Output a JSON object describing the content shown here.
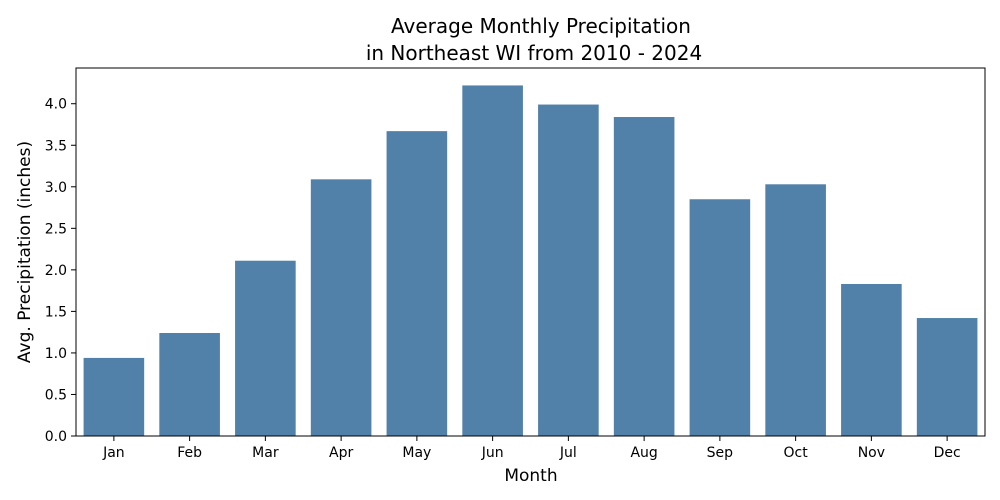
{
  "chart_data": {
    "type": "bar",
    "title_lines": [
      "Average Monthly Precipitation",
      "in Northeast WI from 2010 - 2024"
    ],
    "xlabel": "Month",
    "ylabel": "Avg. Precipitation (inches)",
    "categories": [
      "Jan",
      "Feb",
      "Mar",
      "Apr",
      "May",
      "Jun",
      "Jul",
      "Aug",
      "Sep",
      "Oct",
      "Nov",
      "Dec"
    ],
    "values": [
      0.94,
      1.24,
      2.11,
      3.09,
      3.67,
      4.22,
      3.99,
      3.84,
      2.85,
      3.03,
      1.83,
      1.42
    ],
    "ylim": [
      0,
      4.43
    ],
    "yticks": [
      0.0,
      0.5,
      1.0,
      1.5,
      2.0,
      2.5,
      3.0,
      3.5,
      4.0
    ],
    "ytick_labels": [
      "0.0",
      "0.5",
      "1.0",
      "1.5",
      "2.0",
      "2.5",
      "3.0",
      "3.5",
      "4.0"
    ],
    "grid": false,
    "bar_color": "#5181a8",
    "axis_color": "#000000"
  }
}
